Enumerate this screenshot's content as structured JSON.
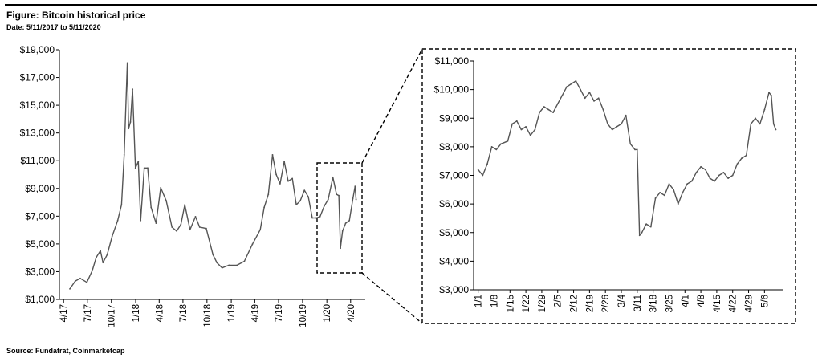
{
  "figure": {
    "title": "Figure: Bitcoin historical price",
    "date_range": "Date: 5/11/2017 to 5/11/2020",
    "source": "Source: Fundatrat, Coinmarketcap"
  },
  "colors": {
    "line": "#555555",
    "axis": "#000000",
    "text": "#000000",
    "background": "#ffffff"
  },
  "chart_data": [
    {
      "type": "line",
      "title": "",
      "xlabel": "",
      "ylabel": "",
      "ylim": [
        1000,
        20000
      ],
      "y_ticks": [
        "$1,000",
        "$3,000",
        "$5,000",
        "$7,000",
        "$9,000",
        "$11,000",
        "$13,000",
        "$15,000",
        "$17,000",
        "$19,000"
      ],
      "x_ticks": [
        "4/17",
        "7/17",
        "10/17",
        "1/18",
        "4/18",
        "7/18",
        "10/18",
        "1/19",
        "4/19",
        "7/19",
        "10/19",
        "1/20",
        "4/20"
      ],
      "grid": false,
      "legend": "none",
      "series": [
        {
          "x": [
            "2017-05-11",
            "2017-06-01",
            "2017-06-20",
            "2017-07-15",
            "2017-08-05",
            "2017-08-20",
            "2017-09-05",
            "2017-09-15",
            "2017-10-01",
            "2017-10-20",
            "2017-11-10",
            "2017-11-25",
            "2017-12-05",
            "2017-12-17",
            "2017-12-22",
            "2017-12-29",
            "2018-01-06",
            "2018-01-17",
            "2018-01-28",
            "2018-02-06",
            "2018-02-20",
            "2018-03-05",
            "2018-03-18",
            "2018-04-06",
            "2018-04-24",
            "2018-05-15",
            "2018-06-06",
            "2018-06-24",
            "2018-07-10",
            "2018-07-25",
            "2018-08-14",
            "2018-09-04",
            "2018-09-20",
            "2018-10-15",
            "2018-11-10",
            "2018-11-25",
            "2018-12-15",
            "2019-01-10",
            "2019-02-10",
            "2019-03-10",
            "2019-04-10",
            "2019-05-10",
            "2019-05-25",
            "2019-06-10",
            "2019-06-26",
            "2019-07-10",
            "2019-07-25",
            "2019-08-10",
            "2019-08-25",
            "2019-09-10",
            "2019-09-25",
            "2019-10-10",
            "2019-10-26",
            "2019-11-10",
            "2019-11-25",
            "2019-12-10",
            "2019-12-25",
            "2020-01-10",
            "2020-01-25",
            "2020-02-12",
            "2020-02-26",
            "2020-03-06",
            "2020-03-12",
            "2020-03-20",
            "2020-04-01",
            "2020-04-15",
            "2020-04-29",
            "2020-05-07",
            "2020-05-11"
          ],
          "y": [
            1800,
            2400,
            2600,
            2300,
            3200,
            4200,
            4700,
            3800,
            4400,
            5800,
            7000,
            8200,
            12000,
            19000,
            14000,
            14500,
            17000,
            11000,
            11500,
            7000,
            11000,
            11000,
            8000,
            6800,
            9500,
            8500,
            6500,
            6200,
            6700,
            8200,
            6300,
            7300,
            6500,
            6400,
            4400,
            3800,
            3400,
            3600,
            3600,
            3900,
            5200,
            6300,
            8000,
            9000,
            12000,
            10500,
            9800,
            11500,
            10000,
            10200,
            8200,
            8500,
            9300,
            8800,
            7200,
            7200,
            7300,
            8100,
            8600,
            10300,
            9000,
            8900,
            4900,
            6200,
            6800,
            7000,
            8700,
            9600,
            8600
          ]
        }
      ]
    },
    {
      "type": "line",
      "title": "",
      "xlabel": "",
      "ylabel": "",
      "ylim": [
        3000,
        11000
      ],
      "y_ticks": [
        "$3,000",
        "$4,000",
        "$5,000",
        "$6,000",
        "$7,000",
        "$8,000",
        "$9,000",
        "$10,000",
        "$11,000"
      ],
      "x_ticks": [
        "1/1",
        "1/8",
        "1/15",
        "1/22",
        "1/29",
        "2/5",
        "2/12",
        "2/19",
        "2/26",
        "3/4",
        "3/11",
        "3/18",
        "3/25",
        "4/1",
        "4/8",
        "4/15",
        "4/22",
        "4/29",
        "5/6"
      ],
      "grid": false,
      "legend": "none",
      "series": [
        {
          "x": [
            "2020-01-01",
            "2020-01-03",
            "2020-01-05",
            "2020-01-07",
            "2020-01-09",
            "2020-01-11",
            "2020-01-14",
            "2020-01-16",
            "2020-01-18",
            "2020-01-20",
            "2020-01-22",
            "2020-01-24",
            "2020-01-26",
            "2020-01-28",
            "2020-01-30",
            "2020-02-01",
            "2020-02-03",
            "2020-02-05",
            "2020-02-07",
            "2020-02-09",
            "2020-02-11",
            "2020-02-13",
            "2020-02-15",
            "2020-02-17",
            "2020-02-19",
            "2020-02-21",
            "2020-02-23",
            "2020-02-25",
            "2020-02-27",
            "2020-02-29",
            "2020-03-02",
            "2020-03-04",
            "2020-03-06",
            "2020-03-08",
            "2020-03-10",
            "2020-03-11",
            "2020-03-12",
            "2020-03-13",
            "2020-03-15",
            "2020-03-17",
            "2020-03-19",
            "2020-03-21",
            "2020-03-23",
            "2020-03-25",
            "2020-03-27",
            "2020-03-29",
            "2020-03-31",
            "2020-04-02",
            "2020-04-04",
            "2020-04-06",
            "2020-04-08",
            "2020-04-10",
            "2020-04-12",
            "2020-04-14",
            "2020-04-16",
            "2020-04-18",
            "2020-04-20",
            "2020-04-22",
            "2020-04-24",
            "2020-04-26",
            "2020-04-28",
            "2020-04-30",
            "2020-05-02",
            "2020-05-04",
            "2020-05-06",
            "2020-05-08",
            "2020-05-09",
            "2020-05-10",
            "2020-05-11"
          ],
          "y": [
            7200,
            7000,
            7400,
            8000,
            7900,
            8100,
            8200,
            8800,
            8900,
            8600,
            8700,
            8400,
            8600,
            9200,
            9400,
            9300,
            9200,
            9500,
            9800,
            10100,
            10200,
            10300,
            10000,
            9700,
            9900,
            9600,
            9700,
            9300,
            8800,
            8600,
            8700,
            8800,
            9100,
            8100,
            7900,
            7900,
            4900,
            5000,
            5300,
            5200,
            6200,
            6400,
            6300,
            6700,
            6500,
            6000,
            6400,
            6700,
            6800,
            7100,
            7300,
            7200,
            6900,
            6800,
            7000,
            7100,
            6900,
            7000,
            7400,
            7600,
            7700,
            8800,
            9000,
            8800,
            9300,
            9900,
            9800,
            8800,
            8600
          ]
        }
      ]
    }
  ]
}
